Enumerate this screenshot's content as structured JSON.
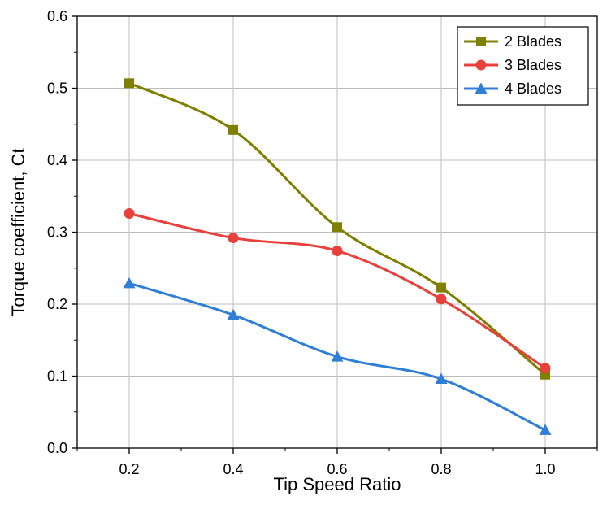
{
  "chart_data": {
    "type": "line",
    "xlabel": "Tip Speed Ratio",
    "ylabel": "Torque coefficient, Ct",
    "xlim": [
      0.1,
      1.1
    ],
    "ylim": [
      0.0,
      0.6
    ],
    "x_ticks": [
      "0.2",
      "0.4",
      "0.6",
      "0.8",
      "1.0"
    ],
    "y_ticks": [
      "0.0",
      "0.1",
      "0.2",
      "0.3",
      "0.4",
      "0.5",
      "0.6"
    ],
    "grid": true,
    "legend_position": "top-right",
    "series": [
      {
        "name": "2 Blades",
        "marker": "square",
        "color": "#808000",
        "x": [
          0.2,
          0.4,
          0.6,
          0.8,
          1.0
        ],
        "y": [
          0.507,
          0.442,
          0.307,
          0.223,
          0.102
        ]
      },
      {
        "name": "3 Blades",
        "marker": "circle",
        "color": "#e8413c",
        "x": [
          0.2,
          0.4,
          0.6,
          0.8,
          1.0
        ],
        "y": [
          0.326,
          0.292,
          0.274,
          0.207,
          0.111
        ]
      },
      {
        "name": "4 Blades",
        "marker": "triangle",
        "color": "#2f7fd6",
        "x": [
          0.2,
          0.4,
          0.6,
          0.8,
          1.0
        ],
        "y": [
          0.229,
          0.185,
          0.127,
          0.096,
          0.025
        ]
      }
    ]
  }
}
